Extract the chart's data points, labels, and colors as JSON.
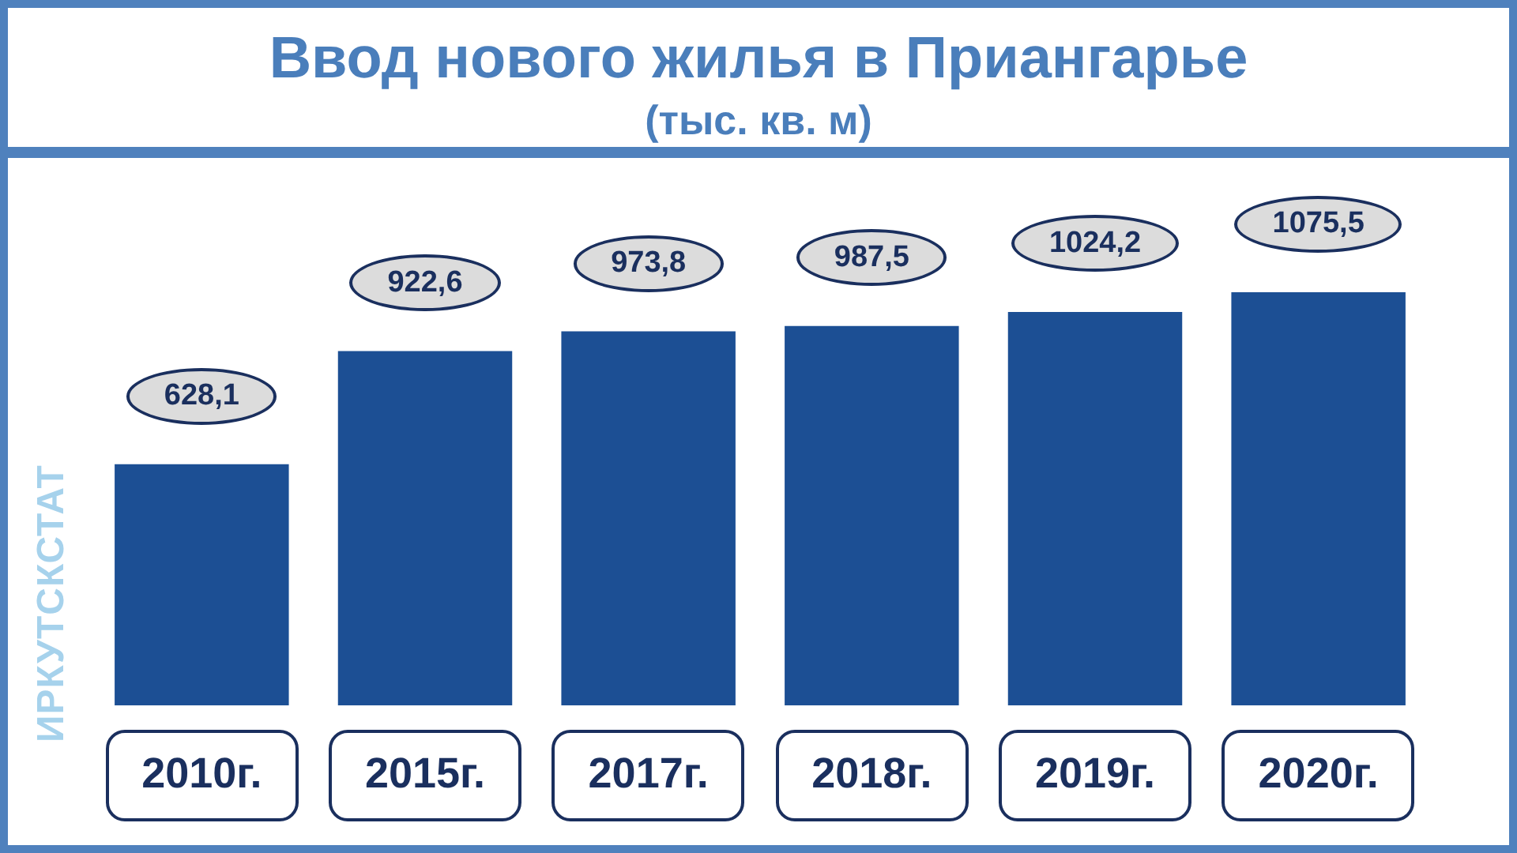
{
  "chart_data": {
    "type": "bar",
    "title": "Ввод нового жилья в Приангарье",
    "subtitle": "(тыс. кв. м)",
    "categories": [
      "2010г.",
      "2015г.",
      "2017г.",
      "2018г.",
      "2019г.",
      "2020г."
    ],
    "values": [
      628.1,
      922.6,
      973.8,
      987.5,
      1024.2,
      1075.5
    ],
    "value_labels": [
      "628,1",
      "922,6",
      "973,8",
      "987,5",
      "1024,2",
      "1075,5"
    ],
    "color": "#1c4f94",
    "tick_labels": "x",
    "annotations": [
      "ИРКУТСКСТАТ"
    ]
  }
}
